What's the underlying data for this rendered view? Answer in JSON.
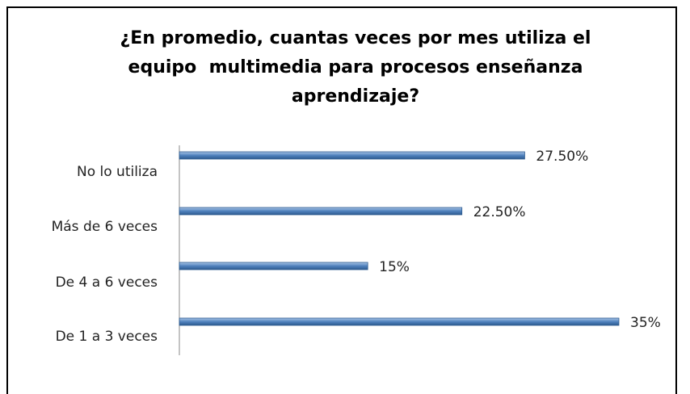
{
  "chart_data": {
    "type": "barh",
    "title": "¿En promedio, cuantas veces por mes utiliza el equipo  multimedia para procesos enseñanza aprendizaje?",
    "categories": [
      "No lo utiliza",
      "Más de 6 veces",
      "De 4 a 6 veces",
      "De 1 a 3 veces"
    ],
    "values": [
      27.5,
      22.5,
      15,
      35
    ],
    "value_labels": [
      "27.50%",
      "22.50%",
      "15%",
      "35%"
    ],
    "color": "#4f81bd"
  }
}
